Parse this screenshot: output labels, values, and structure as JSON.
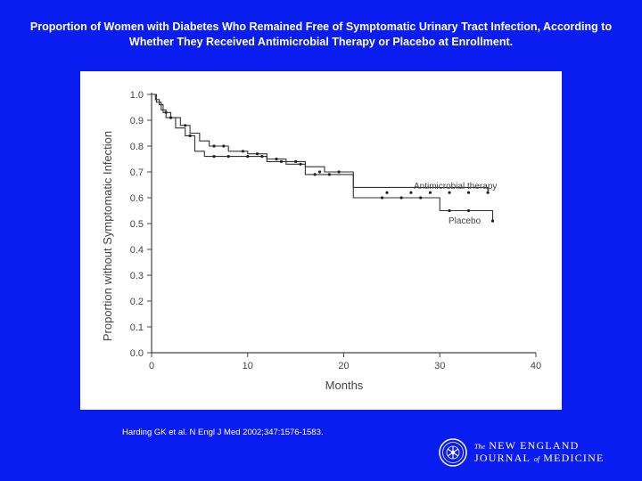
{
  "slide": {
    "title": "Proportion of Women with Diabetes Who Remained Free of Symptomatic Urinary Tract Infection, According to Whether They Received Antimicrobial Therapy or Placebo at Enrollment.",
    "citation": "Harding GK et al. N Engl J Med 2002;347:1576-1583.",
    "background_color": "#0a1df0"
  },
  "journal": {
    "line1_prefix": "The",
    "line1_main": "NEW ENGLAND",
    "line2_a": "JOURNAL",
    "line2_of": "of",
    "line2_b": "MEDICINE"
  },
  "chart_data": {
    "type": "line",
    "subtype": "kaplan-meier step",
    "title": "",
    "xlabel": "Months",
    "ylabel": "Proportion without Symptomatic Infection",
    "xlim": [
      0,
      40
    ],
    "ylim": [
      0,
      1.0
    ],
    "xticks": [
      0,
      10,
      20,
      30,
      40
    ],
    "yticks": [
      0.0,
      0.1,
      0.2,
      0.3,
      0.4,
      0.5,
      0.6,
      0.7,
      0.8,
      0.9,
      1.0
    ],
    "series": [
      {
        "name": "Antimicrobial therapy",
        "steps": [
          [
            0,
            1.0
          ],
          [
            0.4,
            0.98
          ],
          [
            0.8,
            0.96
          ],
          [
            1.2,
            0.93
          ],
          [
            2,
            0.91
          ],
          [
            3,
            0.88
          ],
          [
            4,
            0.85
          ],
          [
            5,
            0.82
          ],
          [
            6,
            0.8
          ],
          [
            8,
            0.78
          ],
          [
            10,
            0.77
          ],
          [
            12,
            0.75
          ],
          [
            14,
            0.74
          ],
          [
            16,
            0.72
          ],
          [
            18,
            0.7
          ],
          [
            21,
            0.64
          ],
          [
            35,
            0.62
          ]
        ],
        "censored": [
          [
            1.5,
            0.93
          ],
          [
            3.5,
            0.88
          ],
          [
            6.5,
            0.8
          ],
          [
            7.5,
            0.8
          ],
          [
            9.5,
            0.78
          ],
          [
            11,
            0.77
          ],
          [
            13,
            0.75
          ],
          [
            15,
            0.74
          ],
          [
            17.5,
            0.7
          ],
          [
            19.5,
            0.7
          ],
          [
            24.5,
            0.62
          ],
          [
            27,
            0.62
          ],
          [
            29,
            0.62
          ],
          [
            31,
            0.62
          ],
          [
            33,
            0.62
          ],
          [
            35,
            0.62
          ]
        ]
      },
      {
        "name": "Placebo",
        "steps": [
          [
            0,
            1.0
          ],
          [
            0.5,
            0.97
          ],
          [
            1,
            0.94
          ],
          [
            1.5,
            0.91
          ],
          [
            2.5,
            0.87
          ],
          [
            3.5,
            0.84
          ],
          [
            4.5,
            0.78
          ],
          [
            5.5,
            0.76
          ],
          [
            7,
            0.76
          ],
          [
            9,
            0.76
          ],
          [
            12,
            0.74
          ],
          [
            14,
            0.73
          ],
          [
            16,
            0.69
          ],
          [
            21,
            0.6
          ],
          [
            30,
            0.55
          ],
          [
            35.5,
            0.51
          ]
        ],
        "censored": [
          [
            2,
            0.91
          ],
          [
            4,
            0.84
          ],
          [
            6.5,
            0.76
          ],
          [
            8,
            0.76
          ],
          [
            10,
            0.76
          ],
          [
            11.5,
            0.76
          ],
          [
            13.5,
            0.74
          ],
          [
            15.5,
            0.73
          ],
          [
            17,
            0.69
          ],
          [
            18.5,
            0.69
          ],
          [
            24,
            0.6
          ],
          [
            26,
            0.6
          ],
          [
            28,
            0.6
          ],
          [
            31,
            0.55
          ],
          [
            33,
            0.55
          ],
          [
            35.5,
            0.51
          ]
        ]
      }
    ],
    "annotations": [
      "Antimicrobial therapy",
      "Placebo"
    ]
  }
}
